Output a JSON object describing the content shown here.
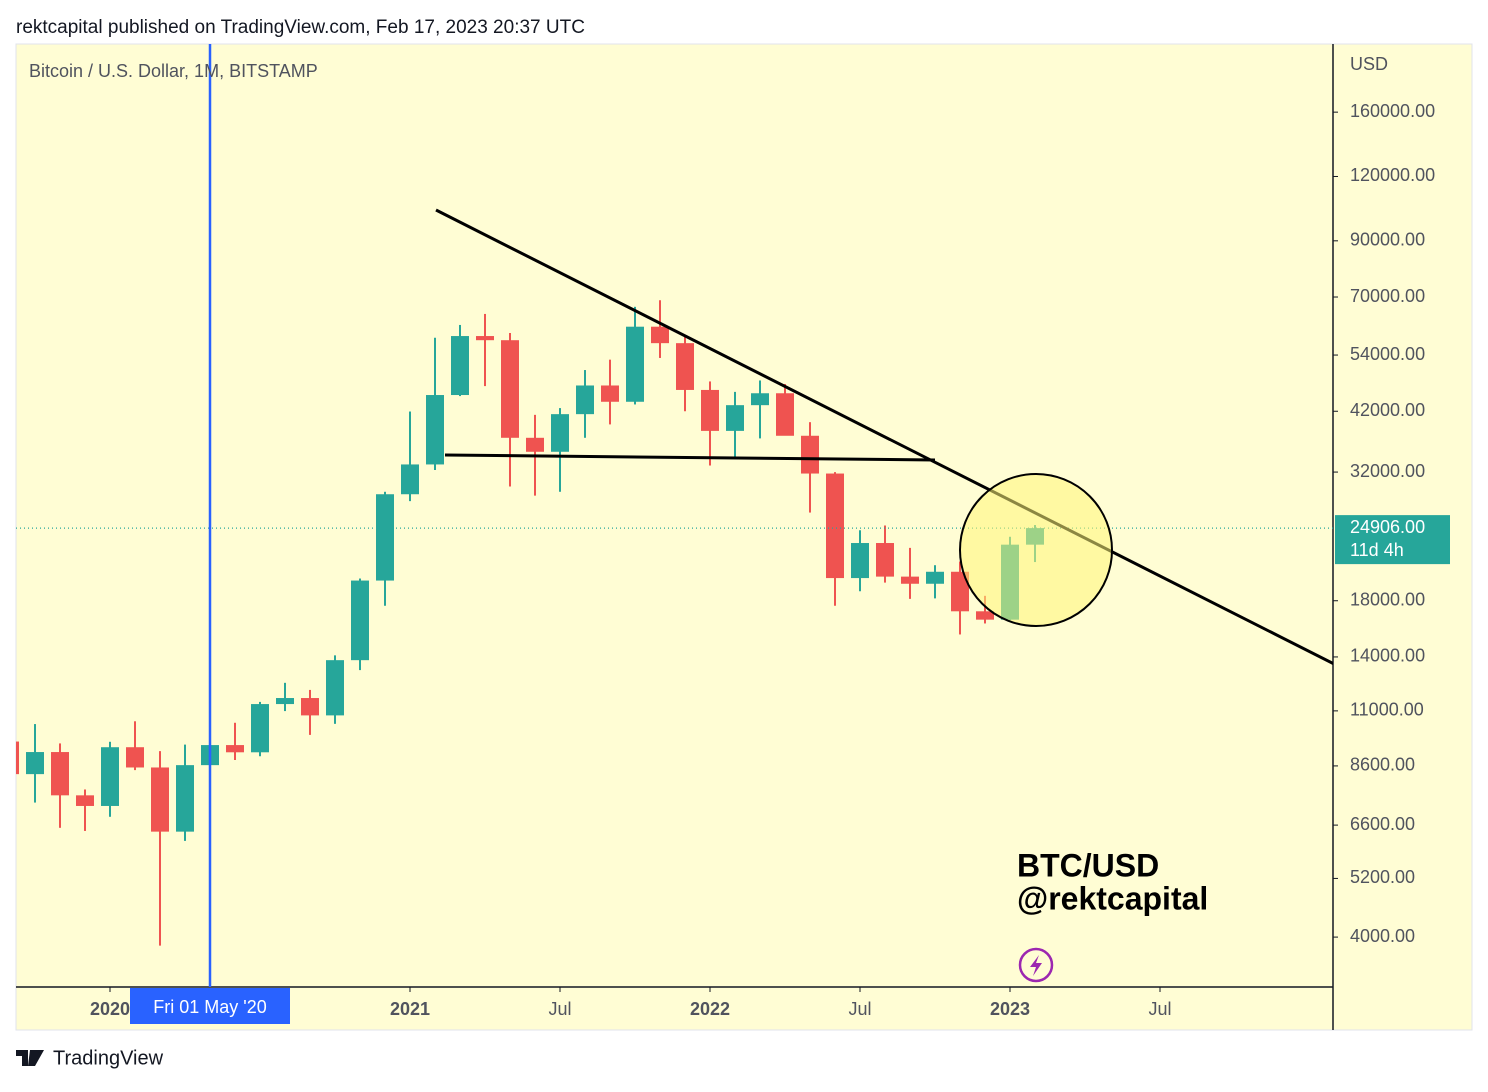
{
  "header": "rektcapital published on TradingView.com, Feb 17, 2023 20:37 UTC",
  "footer": "TradingView",
  "chart_data": {
    "type": "candlestick",
    "title": "Bitcoin / U.S. Dollar, 1M, BITSTAMP",
    "y_axis_label": "USD",
    "watermark": [
      "BTC/USD",
      "@rektcapital"
    ],
    "log_scale": true,
    "up_color": "#26a69a",
    "down_color": "#ef5350",
    "x": [
      "2019-09",
      "2019-10",
      "2019-11",
      "2019-12",
      "2020-01",
      "2020-02",
      "2020-03",
      "2020-04",
      "2020-05",
      "2020-06",
      "2020-07",
      "2020-08",
      "2020-09",
      "2020-10",
      "2020-11",
      "2020-12",
      "2021-01",
      "2021-02",
      "2021-03",
      "2021-04",
      "2021-05",
      "2021-06",
      "2021-07",
      "2021-08",
      "2021-09",
      "2021-10",
      "2021-11",
      "2021-12",
      "2022-01",
      "2022-02",
      "2022-03",
      "2022-04",
      "2022-05",
      "2022-06",
      "2022-07",
      "2022-08",
      "2022-09",
      "2022-10",
      "2022-11",
      "2022-12",
      "2023-01",
      "2023-02"
    ],
    "open": [
      9590,
      8290,
      9150,
      7540,
      7190,
      9350,
      8540,
      6410,
      8630,
      9440,
      9140,
      11340,
      11650,
      10780,
      13800,
      19700,
      28980,
      33110,
      45160,
      58790,
      57710,
      37300,
      35040,
      41460,
      47130,
      43820,
      61300,
      56950,
      46200,
      38470,
      43160,
      45520,
      37640,
      31790,
      19920,
      23300,
      20050,
      19420,
      20490,
      17170,
      16540,
      23130
    ],
    "high": [
      10920,
      10370,
      9510,
      7740,
      9580,
      10500,
      9190,
      9460,
      10070,
      10430,
      11450,
      12470,
      12080,
      14100,
      19880,
      29300,
      41950,
      58350,
      61780,
      64900,
      59600,
      41330,
      42600,
      50500,
      52900,
      67000,
      69000,
      59100,
      47990,
      45800,
      48200,
      47440,
      40000,
      31990,
      24670,
      25200,
      22800,
      21100,
      21450,
      18400,
      23960,
      25250
    ],
    "low": [
      7710,
      7300,
      6520,
      6430,
      6850,
      8440,
      3850,
      6150,
      8110,
      8830,
      8980,
      10990,
      9880,
      10380,
      13200,
      17600,
      28100,
      32300,
      44950,
      47000,
      30000,
      28800,
      29300,
      37300,
      39600,
      43300,
      53300,
      42000,
      32950,
      34300,
      37200,
      37700,
      26700,
      17600,
      18780,
      19520,
      18150,
      18190,
      15480,
      16260,
      16500,
      21400
    ],
    "close": [
      8290,
      9150,
      7540,
      7190,
      9350,
      8540,
      6410,
      8630,
      9440,
      9140,
      11340,
      11650,
      10780,
      13800,
      19700,
      28980,
      33110,
      45160,
      58790,
      57710,
      37300,
      35040,
      41460,
      47130,
      43820,
      61300,
      56950,
      46200,
      38470,
      43160,
      45520,
      37640,
      31790,
      19920,
      23300,
      20050,
      19420,
      20490,
      17170,
      16540,
      23130,
      24906
    ],
    "xlim": [
      "2019-09",
      "2024-01"
    ],
    "xticks": [
      {
        "value": "2020-01",
        "label": "2020"
      },
      {
        "value": "2021-01",
        "label": "2021"
      },
      {
        "value": "2021-07",
        "label": "Jul"
      },
      {
        "value": "2022-01",
        "label": "2022"
      },
      {
        "value": "2022-07",
        "label": "Jul"
      },
      {
        "value": "2023-01",
        "label": "2023"
      },
      {
        "value": "2023-07",
        "label": "Jul"
      }
    ],
    "ylim": [
      3200,
      217000
    ],
    "yticks": [
      {
        "value": 160000,
        "label": "160000.00"
      },
      {
        "value": 120000,
        "label": "120000.00"
      },
      {
        "value": 90000,
        "label": "90000.00"
      },
      {
        "value": 70000,
        "label": "70000.00"
      },
      {
        "value": 54000,
        "label": "54000.00"
      },
      {
        "value": 42000,
        "label": "42000.00"
      },
      {
        "value": 32000,
        "label": "32000.00"
      },
      {
        "value": 18000,
        "label": "18000.00"
      },
      {
        "value": 14000,
        "label": "14000.00"
      },
      {
        "value": 11000,
        "label": "11000.00"
      },
      {
        "value": 8600,
        "label": "8600.00"
      },
      {
        "value": 6600,
        "label": "6600.00"
      },
      {
        "value": 5200,
        "label": "5200.00"
      },
      {
        "value": 4000,
        "label": "4000.00"
      }
    ],
    "last_price": {
      "value": 24906,
      "label": "24906.00"
    },
    "countdown": "11d 4h",
    "crosshair": {
      "x": "2020-05",
      "label": "Fri 01 May '20"
    }
  }
}
